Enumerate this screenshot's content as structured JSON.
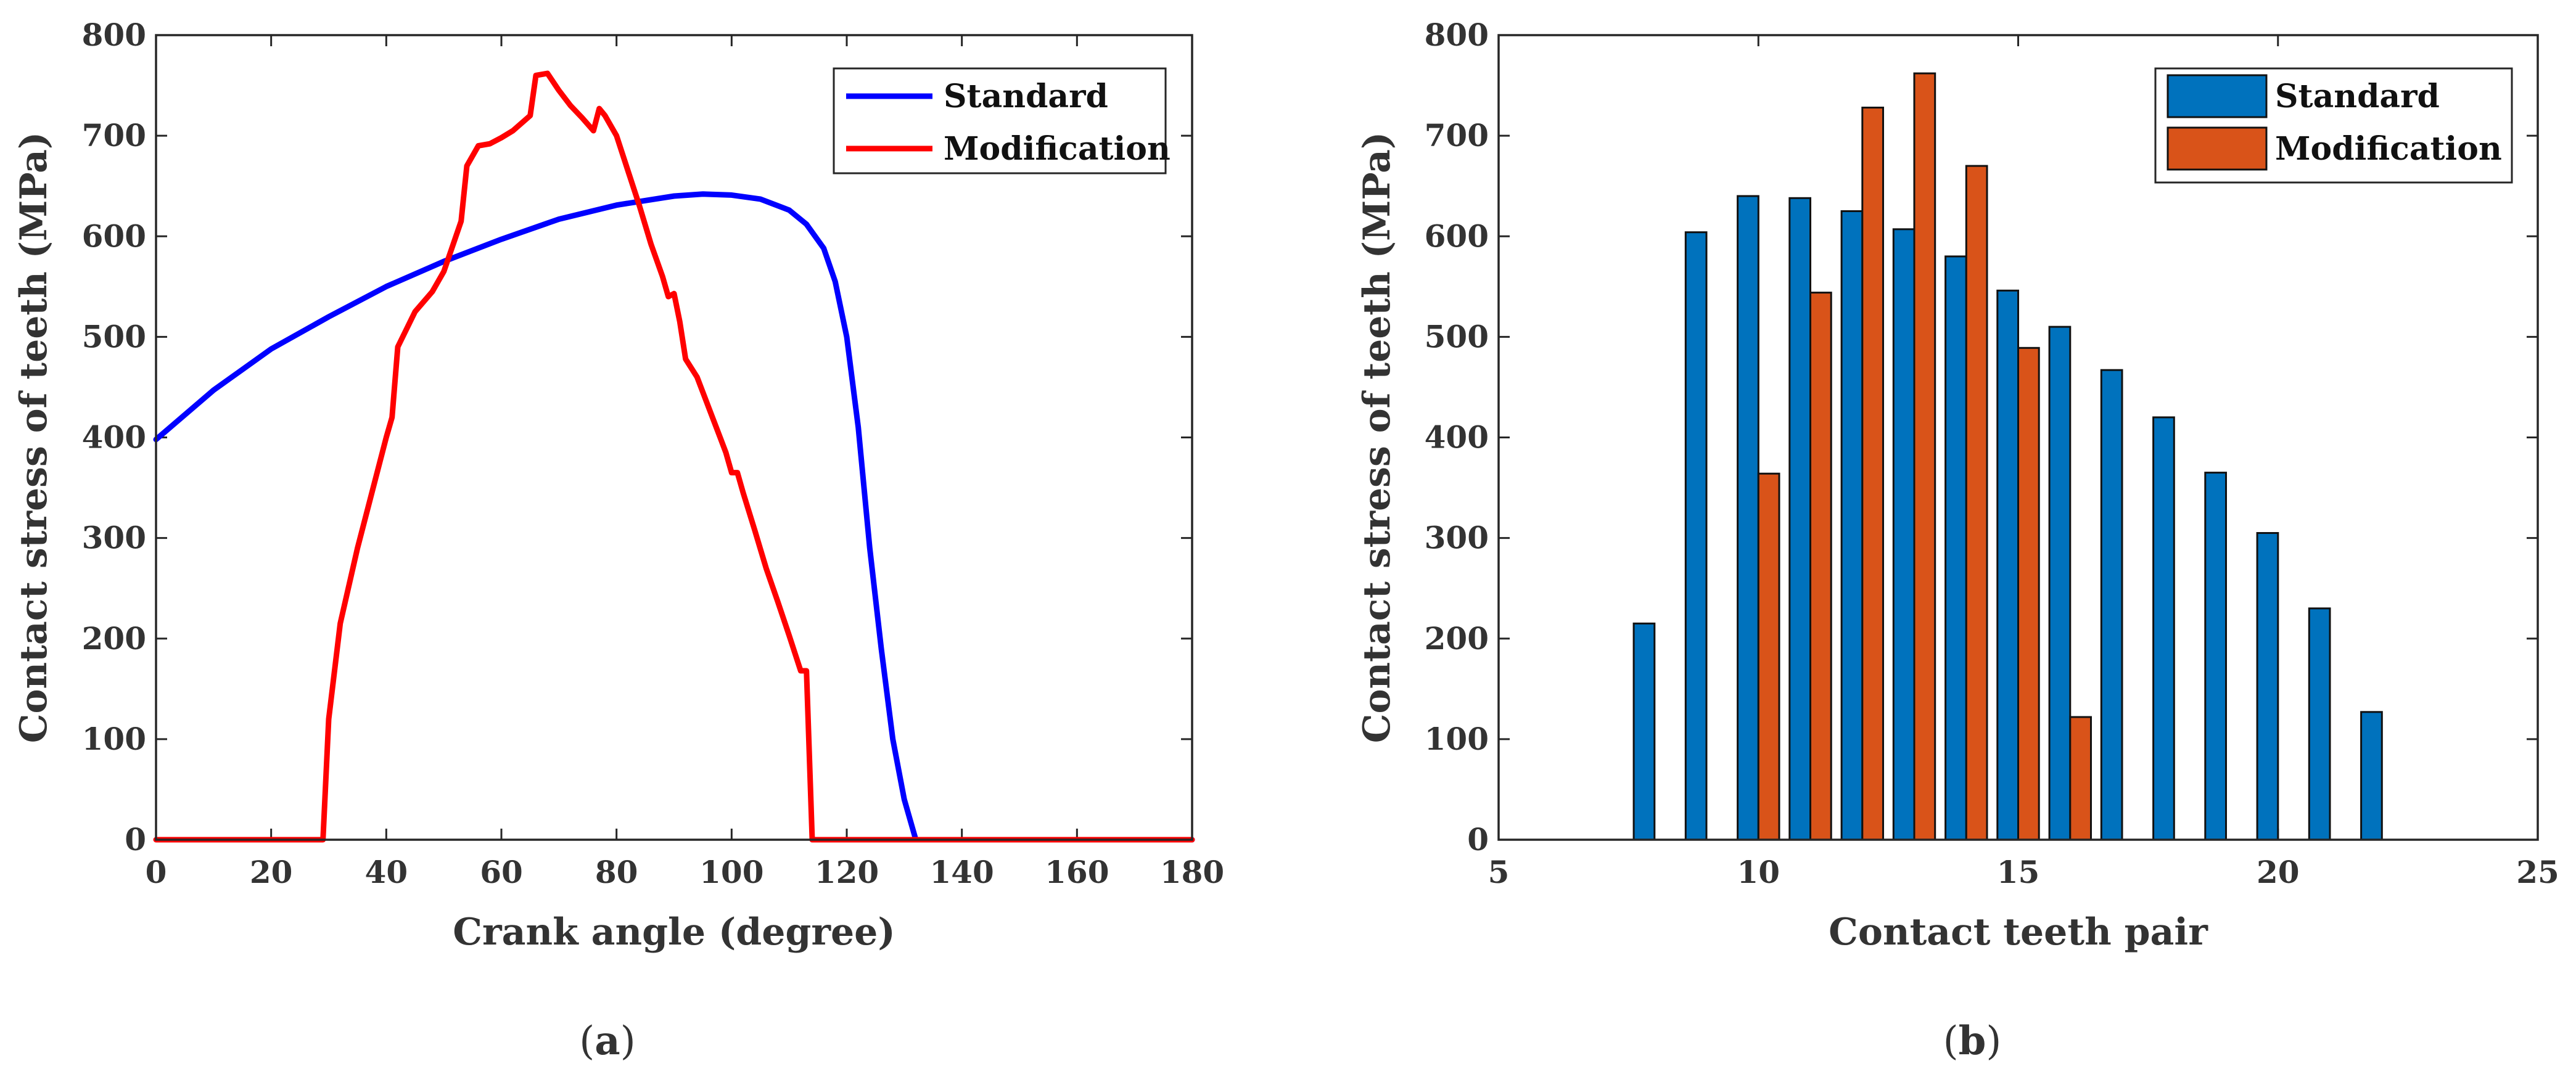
{
  "captions": {
    "a_open": "(",
    "a_letter": "a",
    "a_close": ")",
    "b_open": "(",
    "b_letter": "b",
    "b_close": ")"
  },
  "chart_data": [
    {
      "type": "line",
      "panel": "a",
      "xlabel": "Crank angle (degree)",
      "ylabel": "Contact stress of teeth (MPa)",
      "xlim": [
        0,
        180
      ],
      "ylim": [
        0,
        800
      ],
      "xticks": [
        "0",
        "20",
        "40",
        "60",
        "80",
        "100",
        "120",
        "140",
        "160",
        "180"
      ],
      "yticks": [
        "0",
        "100",
        "200",
        "300",
        "400",
        "500",
        "600",
        "700",
        "800"
      ],
      "grid": false,
      "legend_position": "top-right",
      "series": [
        {
          "name": "Standard",
          "color": "#0000ff",
          "x": [
            0,
            10,
            20,
            30,
            40,
            50,
            60,
            70,
            80,
            90,
            95,
            100,
            105,
            110,
            113,
            116,
            118,
            120,
            122,
            124,
            126,
            128,
            130,
            132,
            180
          ],
          "y": [
            398,
            447,
            488,
            520,
            550,
            575,
            597,
            617,
            631,
            640,
            642,
            641,
            637,
            626,
            612,
            588,
            555,
            500,
            410,
            290,
            190,
            100,
            40,
            0,
            0
          ]
        },
        {
          "name": "Modification",
          "color": "#ff0000",
          "x": [
            0,
            29,
            30,
            32,
            35,
            40,
            41,
            42,
            45,
            48,
            50,
            53,
            54,
            56,
            58,
            60,
            62,
            65,
            66,
            68,
            70,
            72,
            74,
            76,
            77,
            78,
            80,
            82,
            84,
            86,
            88,
            89,
            90,
            91,
            92,
            94,
            96,
            98,
            99,
            100,
            101,
            102,
            104,
            106,
            108,
            110,
            112,
            113,
            114,
            180
          ],
          "y": [
            0,
            0,
            120,
            215,
            290,
            400,
            420,
            490,
            525,
            545,
            565,
            615,
            670,
            690,
            692,
            698,
            705,
            720,
            760,
            762,
            745,
            730,
            718,
            705,
            727,
            720,
            700,
            665,
            630,
            592,
            560,
            540,
            543,
            515,
            478,
            460,
            430,
            400,
            385,
            365,
            365,
            345,
            308,
            270,
            237,
            203,
            168,
            168,
            0,
            0
          ]
        }
      ]
    },
    {
      "type": "bar",
      "panel": "b",
      "xlabel": "Contact teeth pair",
      "ylabel": "Contact stress of teeth (MPa)",
      "xlim": [
        5,
        25
      ],
      "ylim": [
        0,
        800
      ],
      "xticks": [
        "5",
        "10",
        "15",
        "20",
        "25"
      ],
      "yticks": [
        "0",
        "100",
        "200",
        "300",
        "400",
        "500",
        "600",
        "700",
        "800"
      ],
      "grid": false,
      "legend_position": "top-right",
      "categories": [
        6,
        7,
        8,
        9,
        10,
        11,
        12,
        13,
        14,
        15,
        16,
        17,
        18,
        19,
        20,
        21,
        22,
        23,
        24
      ],
      "series": [
        {
          "name": "Standard",
          "color": "#0072bd",
          "values": [
            0,
            0,
            215,
            604,
            640,
            638,
            625,
            607,
            580,
            546,
            510,
            467,
            420,
            365,
            305,
            230,
            127,
            0,
            0
          ]
        },
        {
          "name": "Modification",
          "color": "#d95319",
          "values": [
            0,
            0,
            0,
            0,
            364,
            544,
            728,
            762,
            670,
            489,
            122,
            0,
            0,
            0,
            0,
            0,
            0,
            0,
            0
          ]
        }
      ]
    }
  ]
}
